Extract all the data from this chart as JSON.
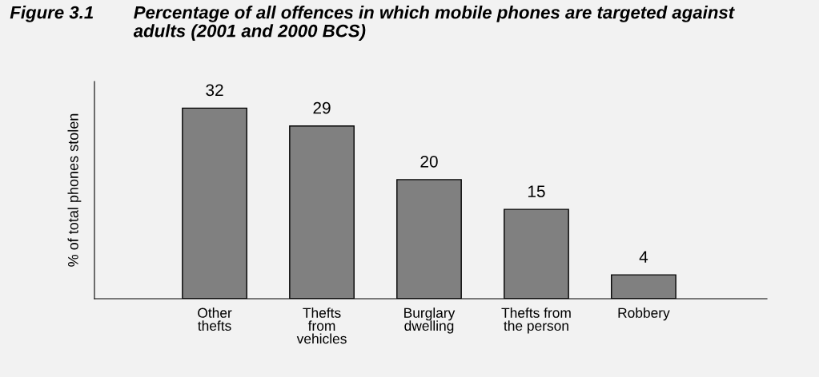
{
  "chart_data": {
    "type": "bar",
    "title": "Figure 3.1",
    "subtitle": "Percentage of all offences in which mobile phones are targeted against\nadults (2001 and 2000 BCS)",
    "ylabel": "% of total phones stolen",
    "categories": [
      "Other\nthefts",
      "Thefts\nfrom\nvehicles",
      "Burglary\ndwelling",
      "Thefts from\nthe person",
      "Robbery"
    ],
    "values": [
      32,
      29,
      20,
      15,
      4
    ],
    "color": "#808080",
    "data_labels": true,
    "grid": false,
    "legend": false
  }
}
